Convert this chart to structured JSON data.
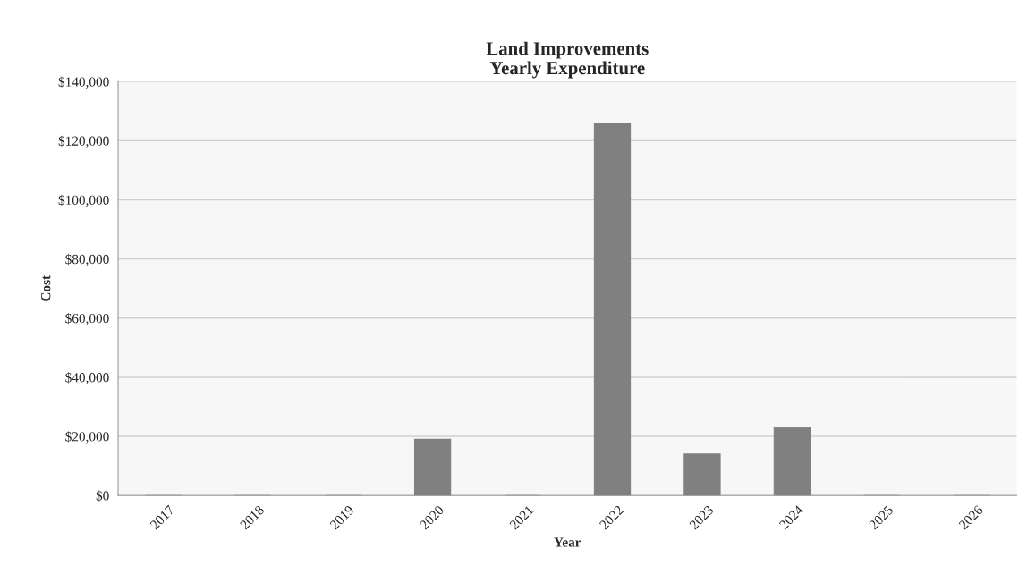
{
  "chart_data": {
    "type": "bar",
    "title": "Land Improvements\nYearly Expenditure",
    "xlabel": "Year",
    "ylabel": "Cost",
    "categories": [
      "2017",
      "2018",
      "2019",
      "2020",
      "2021",
      "2022",
      "2023",
      "2024",
      "2025",
      "2026"
    ],
    "values": [
      0,
      0,
      0,
      19000,
      0,
      126000,
      14000,
      23000,
      0,
      0
    ],
    "color": "#808080",
    "ylim": [
      0,
      140000
    ],
    "yticks": [
      {
        "value": 0,
        "label": "$0"
      },
      {
        "value": 20000,
        "label": "$20,000"
      },
      {
        "value": 40000,
        "label": "$40,000"
      },
      {
        "value": 60000,
        "label": "$60,000"
      },
      {
        "value": 80000,
        "label": "$80,000"
      },
      {
        "value": 100000,
        "label": "$100,000"
      },
      {
        "value": 120000,
        "label": "$120,000"
      },
      {
        "value": 140000,
        "label": "$140,000"
      }
    ],
    "grid": "y"
  }
}
